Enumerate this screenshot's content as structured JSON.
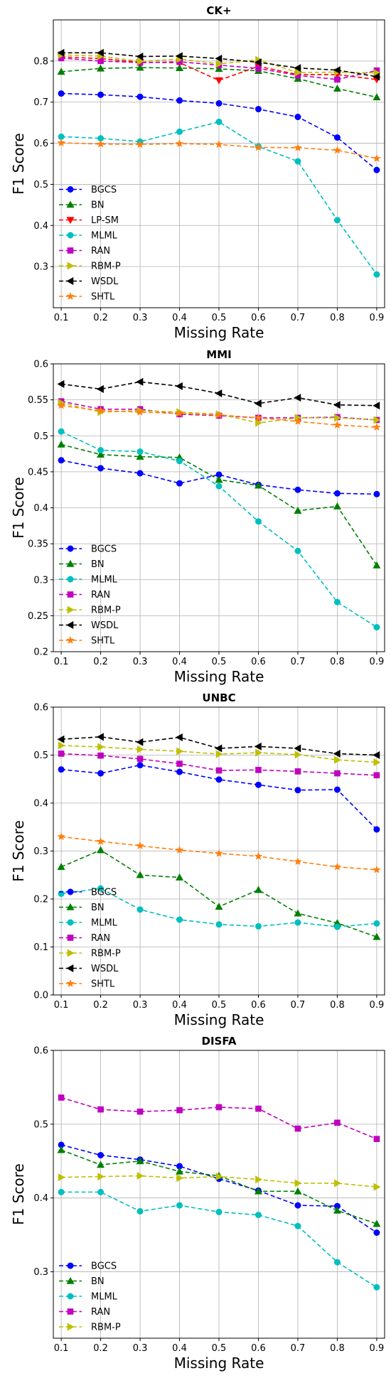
{
  "chart_data": [
    {
      "type": "line",
      "title": "CK+",
      "xlabel": "Missing Rate",
      "ylabel": "F1 Score",
      "x": [
        0.1,
        0.2,
        0.3,
        0.4,
        0.5,
        0.6,
        0.7,
        0.8,
        0.9
      ],
      "xlim": [
        0.08,
        0.92
      ],
      "ylim": [
        0.2,
        0.9
      ],
      "yticks": [
        0.3,
        0.4,
        0.5,
        0.6,
        0.7,
        0.8
      ],
      "ytick_labels": [
        "0.3",
        "0.4",
        "0.5",
        "0.6",
        "0.7",
        "0.8"
      ],
      "grid": true,
      "legend_position": "lower-left",
      "series": [
        {
          "name": "BGCS",
          "color": "#0000ff",
          "marker": "circle",
          "values": [
            0.721,
            0.718,
            0.713,
            0.704,
            0.697,
            0.683,
            0.664,
            0.614,
            0.535
          ]
        },
        {
          "name": "BN",
          "color": "#008000",
          "marker": "triangle-up",
          "values": [
            0.774,
            0.782,
            0.784,
            0.783,
            0.781,
            0.776,
            0.757,
            0.733,
            0.712
          ]
        },
        {
          "name": "LP-SM",
          "color": "#ff0000",
          "marker": "triangle-down",
          "values": [
            0.81,
            0.806,
            0.797,
            0.796,
            0.753,
            0.787,
            0.767,
            0.767,
            0.755
          ]
        },
        {
          "name": "MLML",
          "color": "#00bfbf",
          "marker": "circle",
          "values": [
            0.616,
            0.612,
            0.604,
            0.628,
            0.652,
            0.592,
            0.556,
            0.413,
            0.281
          ]
        },
        {
          "name": "RAN",
          "color": "#bf00bf",
          "marker": "square",
          "values": [
            0.807,
            0.8,
            0.796,
            0.798,
            0.79,
            0.782,
            0.765,
            0.755,
            0.777
          ]
        },
        {
          "name": "RBM-P",
          "color": "#bfbf00",
          "marker": "triangle-right",
          "values": [
            0.815,
            0.812,
            0.799,
            0.805,
            0.793,
            0.803,
            0.772,
            0.773,
            0.771
          ]
        },
        {
          "name": "WSDL",
          "color": "#000000",
          "marker": "triangle-left",
          "values": [
            0.82,
            0.82,
            0.811,
            0.812,
            0.806,
            0.797,
            0.783,
            0.778,
            0.762
          ]
        },
        {
          "name": "SHTL",
          "color": "#ff7f0e",
          "marker": "star",
          "values": [
            0.601,
            0.598,
            0.597,
            0.599,
            0.597,
            0.59,
            0.589,
            0.583,
            0.563
          ]
        }
      ]
    },
    {
      "type": "line",
      "title": "MMI",
      "xlabel": "Missing Rate",
      "ylabel": "F1 Score",
      "x": [
        0.1,
        0.2,
        0.3,
        0.4,
        0.5,
        0.6,
        0.7,
        0.8,
        0.9
      ],
      "xlim": [
        0.08,
        0.92
      ],
      "ylim": [
        0.2,
        0.6
      ],
      "yticks": [
        0.2,
        0.25,
        0.3,
        0.35,
        0.4,
        0.45,
        0.5,
        0.55,
        0.6
      ],
      "ytick_labels": [
        "0.2",
        "0.25",
        "0.3",
        "0.35",
        "0.4",
        "0.45",
        "0.5",
        "0.55",
        "0.6"
      ],
      "grid": true,
      "legend_position": "lower-left",
      "series": [
        {
          "name": "BGCS",
          "color": "#0000ff",
          "marker": "circle",
          "values": [
            0.466,
            0.455,
            0.448,
            0.434,
            0.446,
            0.432,
            0.425,
            0.42,
            0.419
          ]
        },
        {
          "name": "BN",
          "color": "#008000",
          "marker": "triangle-up",
          "values": [
            0.488,
            0.474,
            0.471,
            0.47,
            0.439,
            0.431,
            0.396,
            0.402,
            0.32
          ]
        },
        {
          "name": "MLML",
          "color": "#00bfbf",
          "marker": "circle",
          "values": [
            0.506,
            0.48,
            0.478,
            0.465,
            0.43,
            0.381,
            0.34,
            0.269,
            0.234
          ]
        },
        {
          "name": "RAN",
          "color": "#bf00bf",
          "marker": "square",
          "values": [
            0.548,
            0.537,
            0.537,
            0.53,
            0.528,
            0.525,
            0.525,
            0.526,
            0.522
          ]
        },
        {
          "name": "RBM-P",
          "color": "#bfbf00",
          "marker": "triangle-right",
          "values": [
            0.546,
            0.533,
            0.535,
            0.533,
            0.53,
            0.518,
            0.525,
            0.525,
            0.522
          ]
        },
        {
          "name": "WSDL",
          "color": "#000000",
          "marker": "triangle-left",
          "values": [
            0.572,
            0.565,
            0.575,
            0.569,
            0.559,
            0.545,
            0.553,
            0.543,
            0.542
          ]
        },
        {
          "name": "SHTL",
          "color": "#ff7f0e",
          "marker": "star",
          "values": [
            0.542,
            0.535,
            0.533,
            0.531,
            0.529,
            0.525,
            0.52,
            0.515,
            0.512
          ]
        }
      ]
    },
    {
      "type": "line",
      "title": "UNBC",
      "xlabel": "Missing Rate",
      "ylabel": "F1 Score",
      "x": [
        0.1,
        0.2,
        0.3,
        0.4,
        0.5,
        0.6,
        0.7,
        0.8,
        0.9
      ],
      "xlim": [
        0.08,
        0.92
      ],
      "ylim": [
        0.0,
        0.6
      ],
      "yticks": [
        0.0,
        0.1,
        0.2,
        0.3,
        0.4,
        0.5,
        0.6
      ],
      "ytick_labels": [
        "0.0",
        "0.1",
        "0.2",
        "0.3",
        "0.4",
        "0.5",
        "0.6"
      ],
      "grid": true,
      "legend_position": "lower-left",
      "series": [
        {
          "name": "BGCS",
          "color": "#0000ff",
          "marker": "circle",
          "values": [
            0.47,
            0.462,
            0.479,
            0.465,
            0.449,
            0.438,
            0.427,
            0.428,
            0.345
          ]
        },
        {
          "name": "BN",
          "color": "#008000",
          "marker": "triangle-up",
          "values": [
            0.267,
            0.302,
            0.25,
            0.245,
            0.184,
            0.219,
            0.17,
            0.15,
            0.121
          ]
        },
        {
          "name": "MLML",
          "color": "#00bfbf",
          "marker": "circle",
          "values": [
            0.211,
            0.222,
            0.178,
            0.157,
            0.147,
            0.143,
            0.151,
            0.142,
            0.149
          ]
        },
        {
          "name": "RAN",
          "color": "#bf00bf",
          "marker": "square",
          "values": [
            0.503,
            0.499,
            0.492,
            0.482,
            0.468,
            0.469,
            0.466,
            0.462,
            0.458
          ]
        },
        {
          "name": "RBM-P",
          "color": "#bfbf00",
          "marker": "triangle-right",
          "values": [
            0.52,
            0.517,
            0.512,
            0.508,
            0.502,
            0.505,
            0.501,
            0.49,
            0.485
          ]
        },
        {
          "name": "WSDL",
          "color": "#000000",
          "marker": "triangle-left",
          "values": [
            0.533,
            0.538,
            0.527,
            0.537,
            0.514,
            0.518,
            0.514,
            0.503,
            0.5
          ]
        },
        {
          "name": "SHTL",
          "color": "#ff7f0e",
          "marker": "star",
          "values": [
            0.33,
            0.32,
            0.311,
            0.302,
            0.295,
            0.289,
            0.278,
            0.267,
            0.261
          ]
        }
      ]
    },
    {
      "type": "line",
      "title": "DISFA",
      "xlabel": "Missing Rate",
      "ylabel": "F1 Score",
      "x": [
        0.1,
        0.2,
        0.3,
        0.4,
        0.5,
        0.6,
        0.7,
        0.8,
        0.9
      ],
      "xlim": [
        0.08,
        0.92
      ],
      "ylim": [
        0.21,
        0.6
      ],
      "yticks": [
        0.3,
        0.4,
        0.5,
        0.6
      ],
      "ytick_labels": [
        "0.3",
        "0.4",
        "0.5",
        "0.6"
      ],
      "grid": true,
      "legend_position": "lower-left",
      "series": [
        {
          "name": "BGCS",
          "color": "#0000ff",
          "marker": "circle",
          "values": [
            0.472,
            0.458,
            0.452,
            0.443,
            0.426,
            0.41,
            0.39,
            0.389,
            0.353
          ]
        },
        {
          "name": "BN",
          "color": "#008000",
          "marker": "triangle-up",
          "values": [
            0.465,
            0.445,
            0.45,
            0.436,
            0.43,
            0.409,
            0.409,
            0.383,
            0.365
          ]
        },
        {
          "name": "MLML",
          "color": "#00bfbf",
          "marker": "circle",
          "values": [
            0.408,
            0.408,
            0.382,
            0.39,
            0.381,
            0.377,
            0.362,
            0.313,
            0.279
          ]
        },
        {
          "name": "RAN",
          "color": "#bf00bf",
          "marker": "square",
          "values": [
            0.536,
            0.52,
            0.517,
            0.519,
            0.523,
            0.521,
            0.494,
            0.502,
            0.48
          ]
        },
        {
          "name": "RBM-P",
          "color": "#bfbf00",
          "marker": "triangle-right",
          "values": [
            0.428,
            0.429,
            0.43,
            0.427,
            0.429,
            0.425,
            0.42,
            0.42,
            0.415
          ]
        }
      ]
    }
  ]
}
